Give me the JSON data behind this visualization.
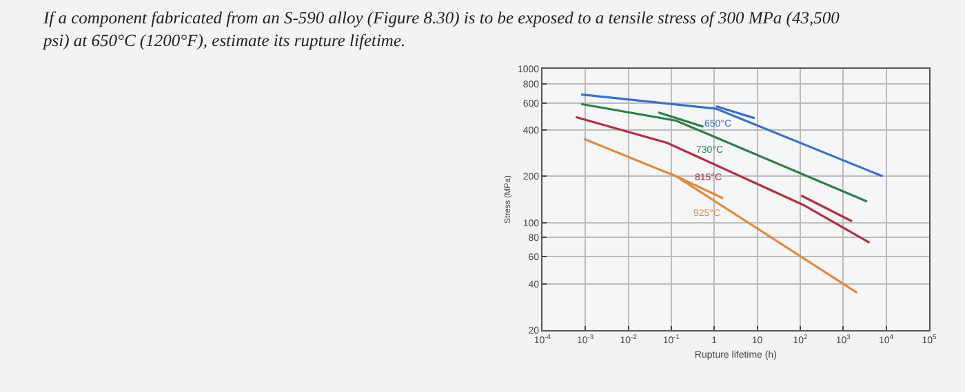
{
  "chart_data": {
    "type": "line",
    "title": "If a component fabricated from an S-590 alloy (Figure 8.30) is to be exposed to a tensile stress of 300 MPa (43,500\npsi) at 650°C (1200°F), estimate its rupture lifetime.",
    "xlabel": "Rupture lifetime (h)",
    "ylabel": "Stress (MPa)",
    "log": "xy",
    "grid": true,
    "marker": "none",
    "line_style": "solid",
    "xlim": [
      0.0001,
      100000
    ],
    "ylim": [
      20,
      1000
    ],
    "xticks": [
      {
        "value": 0.0001,
        "label": "10$^{-4}$"
      },
      {
        "value": 0.001,
        "label": "10$^{-3}$"
      },
      {
        "value": 0.01,
        "label": "10$^{-2}$"
      },
      {
        "value": 0.1,
        "label": "10$^{-1}$"
      },
      1,
      10,
      {
        "value": 100,
        "label": "10$^{2}$"
      },
      {
        "value": 1000,
        "label": "10$^{3}$"
      },
      {
        "value": 10000,
        "label": "10$^{4}$"
      },
      {
        "value": 100000,
        "label": "10$^{5}$"
      }
    ],
    "yticks": [
      20,
      40,
      60,
      80,
      100,
      200,
      400,
      600,
      800,
      1000
    ],
    "series": [
      {
        "name": "650°C",
        "color": "#3a6fc4",
        "x": [
          0.0008,
          1.1,
          8300
        ],
        "values": [
          680,
          550,
          200
        ]
      },
      {
        "color": "#3a6fc4",
        "x": [
          1.1,
          8.7
        ],
        "values": [
          571,
          477
        ]
      },
      {
        "name": "730°C",
        "color": "#2f7d4a",
        "x": [
          0.0008,
          0.13,
          3600
        ],
        "values": [
          590,
          460,
          137
        ]
      },
      {
        "color": "#2f7d4a",
        "x": [
          0.05,
          0.56
        ],
        "values": [
          520,
          420
        ]
      },
      {
        "name": "815°C",
        "color": "#b03040",
        "x": [
          0.0006,
          0.08,
          120,
          4100
        ],
        "values": [
          485,
          330,
          130,
          74
        ]
      },
      {
        "color": "#b03040",
        "x": [
          105,
          1600
        ],
        "values": [
          150,
          102
        ]
      },
      {
        "name": "925°C",
        "color": "#e08a3c",
        "x": [
          0.00093,
          0.13,
          2100
        ],
        "values": [
          350,
          200,
          35
        ]
      },
      {
        "color": "#e08a3c",
        "x": [
          0.09,
          1.6
        ],
        "values": [
          210,
          144
        ]
      }
    ]
  }
}
